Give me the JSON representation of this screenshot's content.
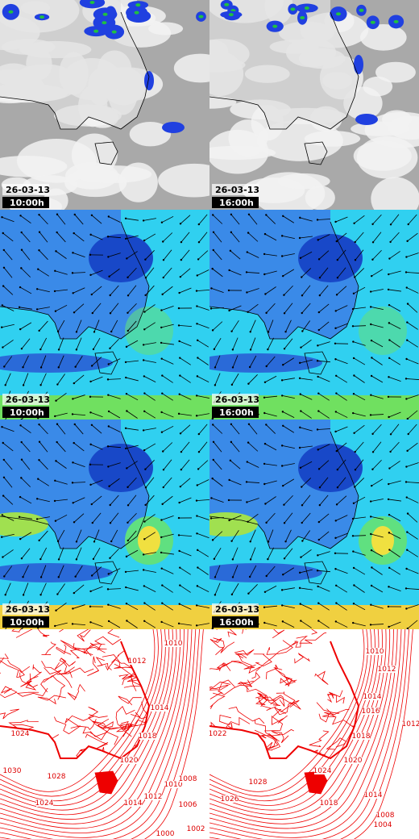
{
  "panels": [
    {
      "date": "26-03-13",
      "time": "10:00h"
    },
    {
      "date": "26-03-13",
      "time": "16:00h"
    },
    {
      "date": "26-03-13",
      "time": "10:00h"
    },
    {
      "date": "26-03-13",
      "time": "16:00h"
    },
    {
      "date": "26-03-13",
      "time": "10:00h"
    },
    {
      "date": "26-03-13",
      "time": "16:00h"
    }
  ],
  "isobar_panels": [
    {
      "labels": [
        "1010",
        "1012",
        "1014",
        "1024",
        "1018",
        "1020",
        "1030",
        "1028",
        "1024",
        "1014",
        "1012",
        "1010",
        "1008",
        "1006",
        "1002",
        "1000"
      ]
    },
    {
      "labels": [
        "1010",
        "1012",
        "1014",
        "1016",
        "1018",
        "1020",
        "1022",
        "1024",
        "1026",
        "1028",
        "1018",
        "1014",
        "1008",
        "1004",
        "1012"
      ]
    }
  ]
}
